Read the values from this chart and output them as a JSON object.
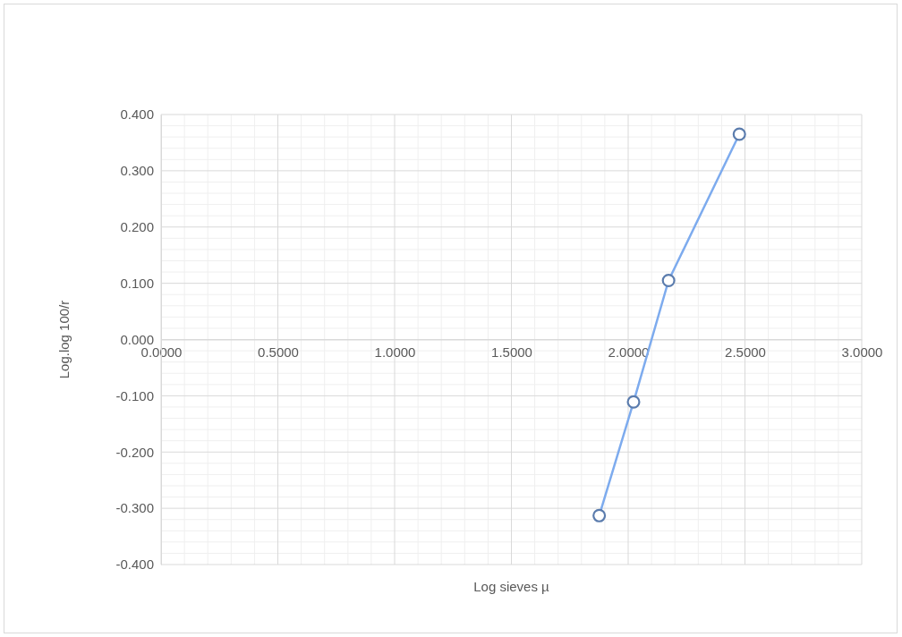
{
  "chart_data": {
    "type": "line",
    "xlabel": "Log sieves µ",
    "ylabel": "Log.log 100/r",
    "x": [
      1.876,
      2.023,
      2.173,
      2.476
    ],
    "series": [
      {
        "color": "#5b7cad",
        "values": [
          -0.313,
          -0.111,
          0.105,
          0.365
        ]
      }
    ],
    "xlim": [
      0,
      3
    ],
    "xticks": [
      {
        "value": 0,
        "label": "0.0000"
      },
      {
        "value": 0.5,
        "label": "0.5000"
      },
      {
        "value": 1,
        "label": "1.0000"
      },
      {
        "value": 1.5,
        "label": "1.5000"
      },
      {
        "value": 2,
        "label": "2.0000"
      },
      {
        "value": 2.5,
        "label": "2.5000"
      },
      {
        "value": 3,
        "label": "3.0000"
      }
    ],
    "ylim": [
      -0.4,
      0.4
    ],
    "yticks": [
      {
        "value": -0.4,
        "label": "-0.400"
      },
      {
        "value": -0.3,
        "label": "-0.300"
      },
      {
        "value": -0.2,
        "label": "-0.200"
      },
      {
        "value": -0.1,
        "label": "-0.100"
      },
      {
        "value": 0,
        "label": "0.000"
      },
      {
        "value": 0.1,
        "label": "0.100"
      },
      {
        "value": 0.2,
        "label": "0.200"
      },
      {
        "value": 0.3,
        "label": "0.300"
      },
      {
        "value": 0.4,
        "label": "0.400"
      }
    ],
    "grid": true,
    "marker": "circle",
    "line_style": "solid"
  }
}
